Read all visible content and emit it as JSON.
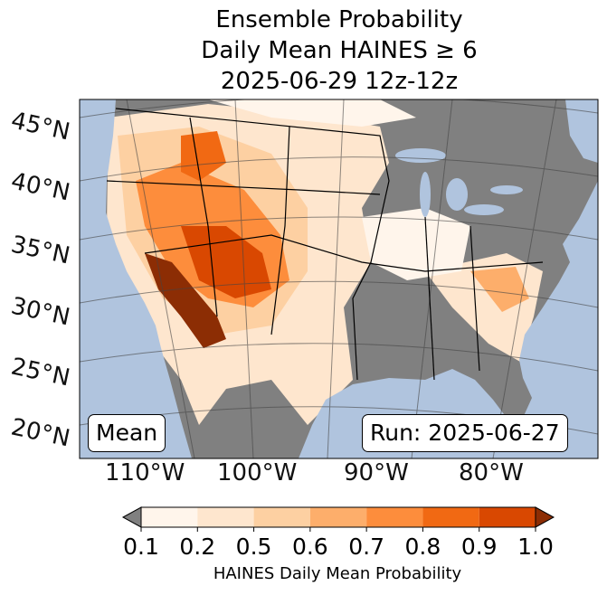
{
  "title": {
    "line1": "Ensemble Probability",
    "line2": "Daily Mean HAINES ≥ 6",
    "line3": "2025-06-29 12z-12z"
  },
  "map": {
    "lat_labels": [
      "45°N",
      "40°N",
      "35°N",
      "30°N",
      "25°N",
      "20°N"
    ],
    "lon_labels": [
      "110°W",
      "100°W",
      "90°W",
      "80°W"
    ],
    "colors": {
      "ocean": "#b0c4de",
      "land_below": "#808080"
    },
    "mean_label": "Mean",
    "run_label": "Run: 2025-06-27"
  },
  "colorbar": {
    "ticks": [
      "0.1",
      "0.2",
      "0.5",
      "0.6",
      "0.7",
      "0.8",
      "0.9",
      "1.0"
    ],
    "colors": [
      "#fff5eb",
      "#fee6ce",
      "#fdd0a2",
      "#fdae6b",
      "#fd8d3c",
      "#f16913",
      "#d94801"
    ],
    "under_color": "#808080",
    "over_color": "#8c2d04",
    "label": "HAINES Daily Mean Probability"
  }
}
